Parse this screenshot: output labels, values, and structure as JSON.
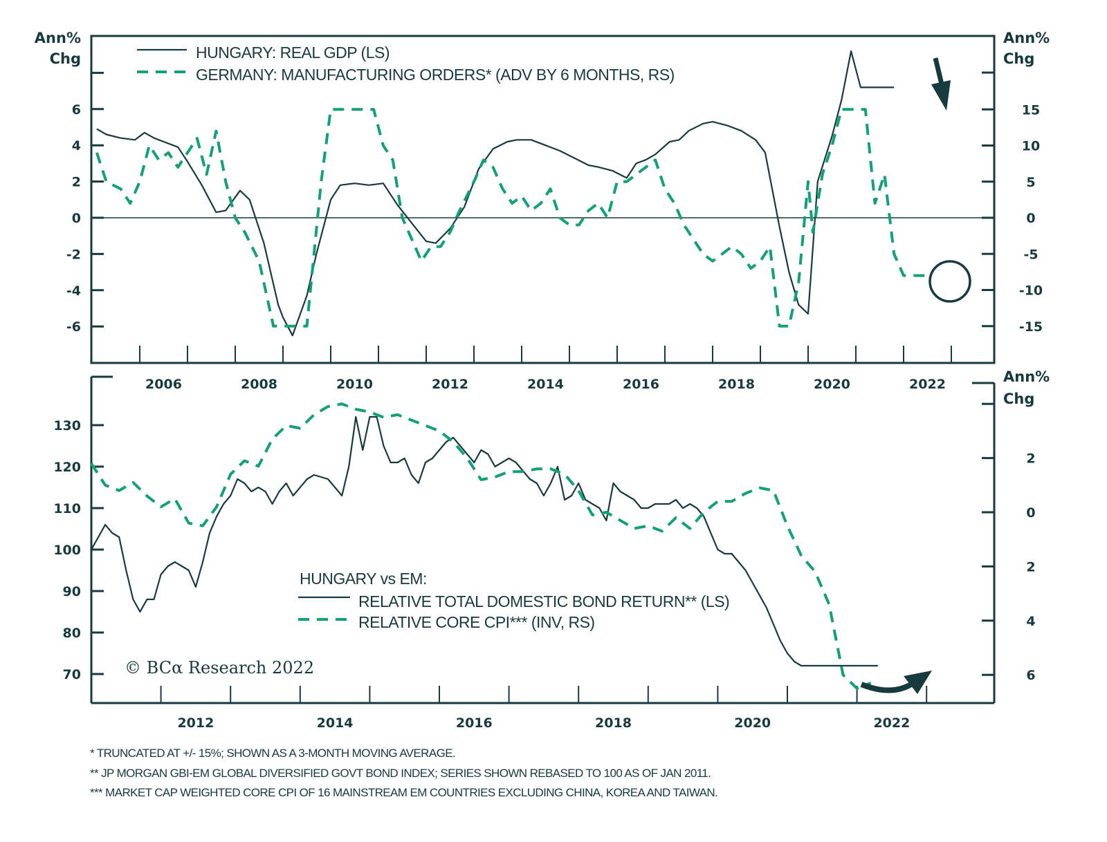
{
  "colors": {
    "dark": "#173a3f",
    "green": "#11a078"
  },
  "chart_data": [
    {
      "type": "line",
      "title": "",
      "left_unit_label": [
        "Ann%",
        "Chg"
      ],
      "right_unit_label": [
        "Ann%",
        "Chg"
      ],
      "xlim": [
        2005,
        2024.9
      ],
      "x_tick_labels": [
        "2006",
        "2008",
        "2010",
        "2012",
        "2014",
        "2016",
        "2018",
        "2020",
        "2022"
      ],
      "ylim_left": [
        -8,
        10
      ],
      "ylim_right": [
        -20,
        23
      ],
      "left_ticks": [
        -6,
        -4,
        -2,
        0,
        2,
        4,
        6
      ],
      "left_tick_labels": [
        "-6",
        "-4",
        "-2",
        "0",
        "2",
        "4",
        "6"
      ],
      "right_ticks": [
        -15,
        -10,
        -5,
        0,
        5,
        10,
        15
      ],
      "right_tick_labels": [
        "-15",
        "-10",
        "-5",
        "0",
        "5",
        "10",
        "15"
      ],
      "legend": [
        "HUNGARY: REAL GDP (LS)",
        "GERMANY: MANUFACTURING ORDERS* (ADV BY 6 MONTHS, RS)"
      ],
      "series": [
        {
          "name": "HUNGARY: REAL GDP (LS)",
          "axis": "left",
          "style": "solid",
          "x": [
            2005.1,
            2005.3,
            2005.6,
            2005.9,
            2006.1,
            2006.3,
            2006.5,
            2006.8,
            2007.0,
            2007.3,
            2007.6,
            2007.8,
            2008.1,
            2008.3,
            2008.6,
            2008.9,
            2009.0,
            2009.2,
            2009.5,
            2009.7,
            2010.0,
            2010.2,
            2010.5,
            2010.8,
            2011.1,
            2011.4,
            2011.7,
            2012.0,
            2012.2,
            2012.5,
            2012.8,
            2013.1,
            2013.4,
            2013.7,
            2013.9,
            2014.2,
            2014.5,
            2014.8,
            2015.1,
            2015.4,
            2015.6,
            2015.9,
            2016.2,
            2016.4,
            2016.6,
            2016.8,
            2017.1,
            2017.3,
            2017.5,
            2017.8,
            2018.0,
            2018.3,
            2018.6,
            2018.9,
            2019.1,
            2019.4,
            2019.6,
            2019.8,
            2020.0,
            2020.2,
            2020.5,
            2020.7,
            2020.9,
            2021.1,
            2021.4,
            2021.6,
            2021.8
          ],
          "y": [
            4.9,
            4.6,
            4.4,
            4.3,
            4.7,
            4.4,
            4.2,
            3.9,
            3.1,
            1.8,
            0.3,
            0.4,
            1.5,
            1.0,
            -1.4,
            -4.8,
            -5.5,
            -6.5,
            -4.3,
            -2.0,
            1.0,
            1.8,
            1.9,
            1.8,
            1.9,
            0.7,
            -0.3,
            -1.3,
            -1.4,
            -0.6,
            0.6,
            2.7,
            3.8,
            4.2,
            4.3,
            4.3,
            4.0,
            3.7,
            3.3,
            2.9,
            2.8,
            2.6,
            2.2,
            3.0,
            3.2,
            3.5,
            4.2,
            4.3,
            4.8,
            5.2,
            5.3,
            5.1,
            4.8,
            4.3,
            3.6,
            -0.5,
            -3.0,
            -4.8,
            -5.3,
            2.0,
            4.5,
            6.5,
            9.2,
            7.2,
            7.2,
            7.2,
            7.2
          ]
        },
        {
          "name": "GERMANY: MANUFACTURING ORDERS* (ADV BY 6 MONTHS, RS)",
          "axis": "right",
          "style": "dashed",
          "x": [
            2005.1,
            2005.3,
            2005.6,
            2005.8,
            2006.0,
            2006.2,
            2006.4,
            2006.6,
            2006.8,
            2007.0,
            2007.2,
            2007.4,
            2007.6,
            2007.8,
            2008.0,
            2008.2,
            2008.5,
            2008.8,
            2009.0,
            2009.3,
            2009.5,
            2009.8,
            2010.0,
            2010.3,
            2010.6,
            2010.9,
            2011.1,
            2011.3,
            2011.5,
            2011.7,
            2011.9,
            2012.1,
            2012.3,
            2012.5,
            2012.7,
            2013.0,
            2013.2,
            2013.4,
            2013.6,
            2013.8,
            2014.0,
            2014.2,
            2014.4,
            2014.6,
            2014.8,
            2015.0,
            2015.2,
            2015.4,
            2015.6,
            2015.8,
            2016.0,
            2016.2,
            2016.4,
            2016.6,
            2016.8,
            2017.0,
            2017.2,
            2017.4,
            2017.6,
            2017.8,
            2018.0,
            2018.2,
            2018.4,
            2018.6,
            2018.8,
            2019.0,
            2019.2,
            2019.4,
            2019.6,
            2019.8,
            2020.0,
            2020.1,
            2020.3,
            2020.5,
            2020.7,
            2020.9,
            2021.2,
            2021.4,
            2021.6,
            2021.8,
            2022.0,
            2022.3,
            2022.6
          ],
          "y": [
            9,
            5,
            4,
            2,
            5,
            10,
            8,
            9,
            7,
            9,
            11,
            6,
            12,
            5,
            0,
            -2,
            -6,
            -15,
            -15,
            -15,
            -15,
            5,
            15,
            15,
            15,
            15,
            10,
            8,
            0,
            -3,
            -6,
            -4,
            -4,
            -2,
            1,
            5,
            8,
            7,
            4,
            2,
            3,
            1,
            2,
            4,
            0,
            -1,
            -1,
            1,
            2,
            0,
            5,
            5,
            6,
            7,
            8,
            4,
            2,
            -1,
            -3,
            -5,
            -6,
            -5,
            -4,
            -5,
            -7,
            -6,
            -4,
            -15,
            -15,
            -9,
            5,
            -2,
            6,
            10,
            15,
            15,
            15,
            2,
            6,
            -5,
            -8,
            -8,
            -8
          ]
        }
      ],
      "annotations": [
        "down-arrow near 2021 GDP peak",
        "circle highlighting 2022 manufacturing orders value"
      ]
    },
    {
      "type": "line",
      "title": "HUNGARY vs EM:",
      "right_unit_label": [
        "Ann%",
        "Chg"
      ],
      "xlim": [
        2011,
        2024
      ],
      "x_tick_labels": [
        "2012",
        "2014",
        "2016",
        "2018",
        "2020",
        "2022"
      ],
      "ylim_left": [
        62,
        137
      ],
      "left_ticks": [
        70,
        80,
        90,
        100,
        110,
        120,
        130
      ],
      "left_tick_labels": [
        "70",
        "80",
        "90",
        "100",
        "110",
        "120",
        "130"
      ],
      "right_axis_inverted": true,
      "right_ticks": [
        -4,
        -2,
        0,
        2,
        4,
        6
      ],
      "right_tick_labels": [
        "",
        "2",
        "0",
        "2",
        "4",
        "6"
      ],
      "legend": [
        "RELATIVE TOTAL DOMESTIC BOND RETURN** (LS)",
        "RELATIVE CORE CPI*** (INV, RS)"
      ],
      "series": [
        {
          "name": "RELATIVE TOTAL DOMESTIC BOND RETURN** (LS)",
          "axis": "left",
          "style": "solid",
          "x": [
            2011.0,
            2011.1,
            2011.2,
            2011.3,
            2011.4,
            2011.5,
            2011.6,
            2011.7,
            2011.8,
            2011.9,
            2012.0,
            2012.1,
            2012.2,
            2012.3,
            2012.4,
            2012.5,
            2012.6,
            2012.7,
            2012.8,
            2012.9,
            2013.0,
            2013.1,
            2013.2,
            2013.3,
            2013.4,
            2013.5,
            2013.6,
            2013.7,
            2013.8,
            2013.9,
            2014.0,
            2014.1,
            2014.2,
            2014.4,
            2014.6,
            2014.7,
            2014.8,
            2014.9,
            2015.0,
            2015.1,
            2015.2,
            2015.3,
            2015.4,
            2015.5,
            2015.6,
            2015.7,
            2015.8,
            2015.9,
            2016.0,
            2016.1,
            2016.2,
            2016.3,
            2016.4,
            2016.5,
            2016.6,
            2016.7,
            2016.8,
            2016.9,
            2017.0,
            2017.1,
            2017.2,
            2017.3,
            2017.4,
            2017.5,
            2017.6,
            2017.7,
            2017.8,
            2017.9,
            2018.0,
            2018.1,
            2018.2,
            2018.3,
            2018.4,
            2018.5,
            2018.6,
            2018.7,
            2018.8,
            2018.9,
            2019.0,
            2019.1,
            2019.2,
            2019.3,
            2019.4,
            2019.5,
            2019.6,
            2019.7,
            2019.8,
            2019.9,
            2020.0,
            2020.1,
            2020.2,
            2020.3,
            2020.4,
            2020.5,
            2020.6,
            2020.7,
            2020.8,
            2020.9,
            2021.0,
            2021.1,
            2021.2,
            2021.3,
            2021.4,
            2021.5,
            2021.6,
            2021.7,
            2021.8,
            2021.9,
            2022.0,
            2022.1,
            2022.2,
            2022.3
          ],
          "y": [
            100,
            103,
            106,
            104,
            103,
            95,
            88,
            85,
            88,
            88,
            94,
            96,
            97,
            96,
            95,
            91,
            97,
            104,
            108,
            111,
            113,
            117,
            116,
            114,
            115,
            114,
            111,
            114,
            116,
            113,
            115,
            117,
            118,
            117,
            113,
            120,
            132,
            124,
            132,
            132,
            125,
            121,
            121,
            122,
            118,
            116,
            121,
            122,
            124,
            126,
            127,
            125,
            123,
            121,
            124,
            123,
            120,
            121,
            122,
            121,
            119,
            117,
            116,
            113,
            116,
            120,
            112,
            113,
            116,
            112,
            111,
            110,
            107,
            116,
            114,
            113,
            112,
            110,
            110,
            111,
            111,
            111,
            112,
            110,
            111,
            110,
            108,
            104,
            100,
            99,
            99,
            97,
            95,
            92,
            89,
            86,
            82,
            78,
            75,
            73,
            72,
            72,
            72,
            72,
            72,
            72,
            72,
            72,
            72,
            72,
            72,
            72
          ]
        },
        {
          "name": "RELATIVE CORE CPI*** (INV, RS)",
          "axis": "right",
          "style": "dashed",
          "x": [
            2011.0,
            2011.2,
            2011.4,
            2011.6,
            2011.8,
            2012.0,
            2012.2,
            2012.4,
            2012.6,
            2012.8,
            2013.0,
            2013.2,
            2013.4,
            2013.6,
            2013.8,
            2014.0,
            2014.2,
            2014.4,
            2014.6,
            2014.8,
            2015.0,
            2015.2,
            2015.4,
            2015.6,
            2015.8,
            2016.0,
            2016.2,
            2016.4,
            2016.6,
            2016.8,
            2017.0,
            2017.2,
            2017.4,
            2017.6,
            2017.8,
            2018.0,
            2018.2,
            2018.4,
            2018.6,
            2018.8,
            2019.0,
            2019.2,
            2019.4,
            2019.6,
            2019.8,
            2020.0,
            2020.2,
            2020.4,
            2020.6,
            2020.8,
            2021.0,
            2021.2,
            2021.4,
            2021.6,
            2021.8,
            2022.0,
            2022.1,
            2022.2
          ],
          "y": [
            -1.8,
            -1.0,
            -0.8,
            -1.1,
            -0.6,
            -0.2,
            -0.5,
            0.4,
            0.5,
            -0.2,
            -1.4,
            -1.9,
            -1.7,
            -2.7,
            -3.2,
            -3.1,
            -3.6,
            -3.9,
            -4.0,
            -3.8,
            -3.7,
            -3.5,
            -3.6,
            -3.4,
            -3.2,
            -3.0,
            -2.6,
            -2.0,
            -1.2,
            -1.3,
            -1.5,
            -1.5,
            -1.6,
            -1.6,
            -1.4,
            -0.8,
            0.1,
            0.0,
            0.3,
            0.6,
            0.5,
            0.7,
            0.2,
            0.6,
            0.0,
            -0.4,
            -0.4,
            -0.7,
            -0.9,
            -0.8,
            0.5,
            1.6,
            2.2,
            3.4,
            6.0,
            6.5,
            6.4,
            6.3
          ]
        }
      ],
      "annotations": [
        "curved arrow pointing up-right near 2022"
      ]
    }
  ],
  "watermark": "© BCα Research 2022",
  "footnotes": [
    "*  TRUNCATED AT +/- 15%; SHOWN AS A 3-MONTH MOVING AVERAGE.",
    "**  JP MORGAN GBI-EM GLOBAL DIVERSIFIED GOVT BOND INDEX; SERIES SHOWN REBASED TO 100 AS OF JAN 2011.",
    "***  MARKET CAP WEIGHTED CORE CPI OF 16 MAINSTREAM EM COUNTRIES EXCLUDING CHINA, KOREA AND TAIWAN."
  ]
}
